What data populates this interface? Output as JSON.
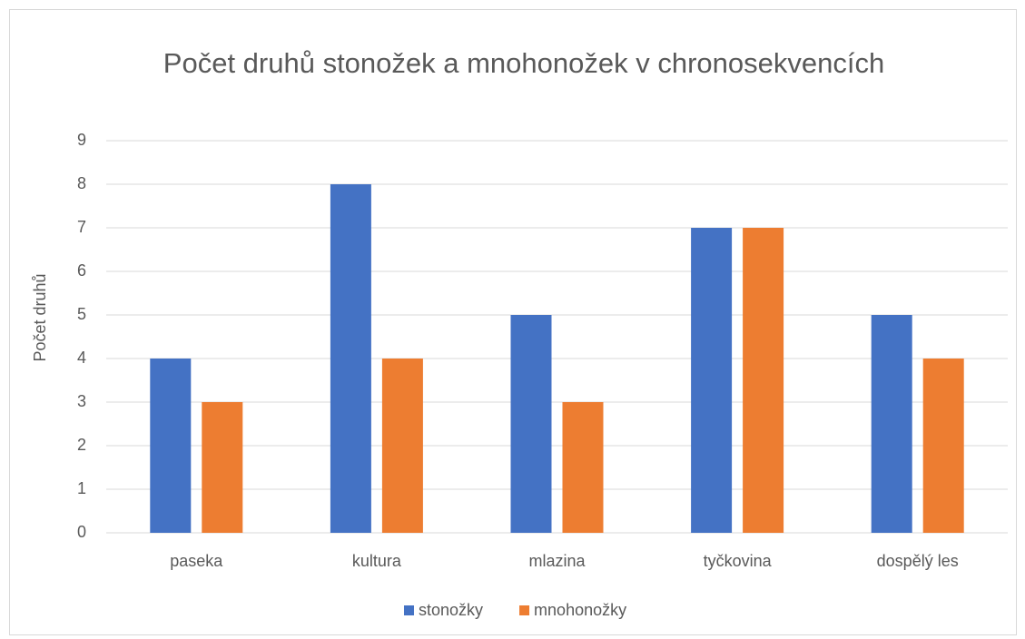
{
  "chart_data": {
    "type": "bar",
    "title": "Počet druhů stonožek a mnohonožek v chronosekvencích",
    "y_axis_label": "Počet druhů",
    "categories": [
      "paseka",
      "kultura",
      "mlazina",
      "tyčkovina",
      "dospělý les"
    ],
    "series": [
      {
        "name": "stonožky",
        "color": "#4472c4",
        "values": [
          4,
          8,
          5,
          7,
          5
        ]
      },
      {
        "name": "mnohonožky",
        "color": "#ed7d31",
        "values": [
          3,
          4,
          3,
          7,
          4
        ]
      }
    ],
    "ylim": [
      0,
      9
    ],
    "yticks": [
      0,
      1,
      2,
      3,
      4,
      5,
      6,
      7,
      8,
      9
    ],
    "grid": true,
    "legend": "bottom"
  }
}
